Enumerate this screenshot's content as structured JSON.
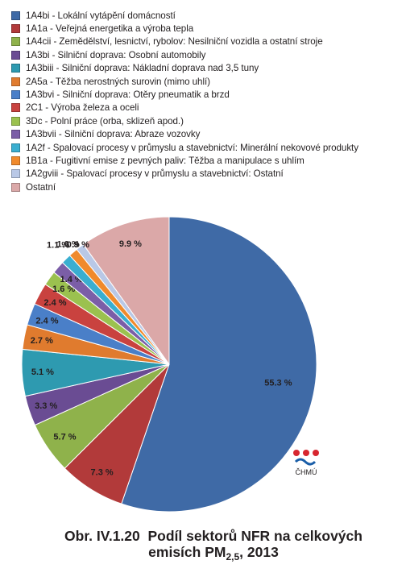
{
  "chart_data": {
    "type": "pie",
    "categories": [
      "1A4bi - Lokální vytápění domácností",
      "1A1a - Veřejná energetika a výroba tepla",
      "1A4cii - Zemědělství, lesnictví, rybolov: Nesilniční vozidla a ostatní stroje",
      "1A3bi - Silniční doprava: Osobní automobily",
      "1A3biii - Silniční doprava: Nákladní doprava nad 3,5 tuny",
      "2A5a - Těžba nerostných surovin (mimo uhlí)",
      "1A3bvi - Silniční doprava: Otěry pneumatik a brzd",
      "2C1 - Výroba železa a oceli",
      "3Dc - Polní práce (orba, sklizeň apod.)",
      "1A3bvii - Silniční doprava: Abraze vozovky",
      "1A2f - Spalovací procesy v průmyslu a stavebnictví: Minerální nekovové produkty",
      "1B1a - Fugitivní emise z pevných paliv: Těžba a manipulace s uhlím",
      "1A2gviii - Spalovací procesy v průmyslu a stavebnictví: Ostatní",
      "Ostatní"
    ],
    "values": [
      55.3,
      7.3,
      5.7,
      3.3,
      5.1,
      2.7,
      2.4,
      2.4,
      1.6,
      1.4,
      1.1,
      1.0,
      0.9,
      9.9
    ],
    "labels": [
      "55.3 %",
      "7.3 %",
      "5.7 %",
      "3.3 %",
      "5.1 %",
      "2.7 %",
      "2.4 %",
      "2.4 %",
      "1.6 %",
      "1.4 %",
      "1.1 %",
      "1.0 %",
      "0.9 %",
      "9.9 %"
    ],
    "colors": [
      "#3f6aa6",
      "#b23a3a",
      "#8fb24b",
      "#6a4c93",
      "#2e9ab0",
      "#e07b2e",
      "#4a7fc8",
      "#c9423f",
      "#9bc14f",
      "#7b5ea7",
      "#3aaed0",
      "#f08a2c",
      "#b9c8e6",
      "#dba8a8"
    ],
    "start_angle_deg": 0,
    "direction": "clockwise",
    "legend_position": "top"
  },
  "caption": {
    "prefix": "Obr. IV.1.20",
    "title_main": "Podíl sektorů NFR na celkových",
    "title_line2_start": "emisích PM",
    "title_sub": "2,5",
    "title_line2_end": ", 2013"
  },
  "logo": {
    "text": "ČHMÚ",
    "icon": "chmu-logo-icon"
  }
}
